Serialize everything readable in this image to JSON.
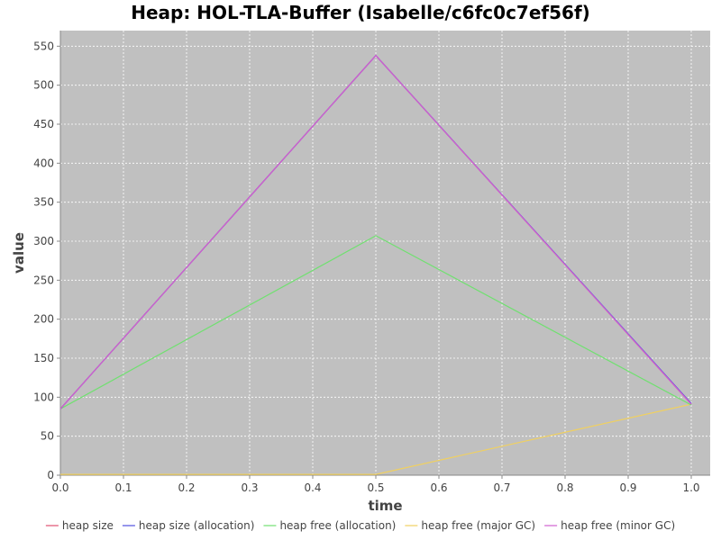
{
  "chart_data": {
    "type": "line",
    "title": "Heap: HOL-TLA-Buffer (Isabelle/c6fc0c7ef56f)",
    "xlabel": "time",
    "ylabel": "value",
    "xlim": [
      0.0,
      1.03
    ],
    "ylim": [
      0,
      570
    ],
    "x_ticks": [
      "0.0",
      "0.1",
      "0.2",
      "0.3",
      "0.4",
      "0.5",
      "0.6",
      "0.7",
      "0.8",
      "0.9",
      "1.0"
    ],
    "y_ticks": [
      "0",
      "50",
      "100",
      "150",
      "200",
      "250",
      "300",
      "350",
      "400",
      "450",
      "500",
      "550"
    ],
    "grid": true,
    "legend_position": "bottom",
    "plot_background": "#c0c0c0",
    "series": [
      {
        "name": "heap size",
        "color": "#e05070",
        "x": [
          0.0,
          0.5,
          1.0
        ],
        "y": [
          85,
          538,
          91
        ]
      },
      {
        "name": "heap size (allocation)",
        "color": "#5050e0",
        "x": [
          0.0,
          0.5,
          1.0
        ],
        "y": [
          85,
          538,
          92
        ]
      },
      {
        "name": "heap free (allocation)",
        "color": "#70e070",
        "x": [
          0.0,
          0.5,
          1.0
        ],
        "y": [
          85,
          307,
          90
        ]
      },
      {
        "name": "heap free (major GC)",
        "color": "#f0d060",
        "x": [
          0.0,
          0.5,
          1.0
        ],
        "y": [
          1,
          1,
          91
        ]
      },
      {
        "name": "heap free (minor GC)",
        "color": "#d060d0",
        "x": [
          0.0,
          0.5,
          1.0
        ],
        "y": [
          85,
          538,
          91
        ]
      }
    ]
  }
}
